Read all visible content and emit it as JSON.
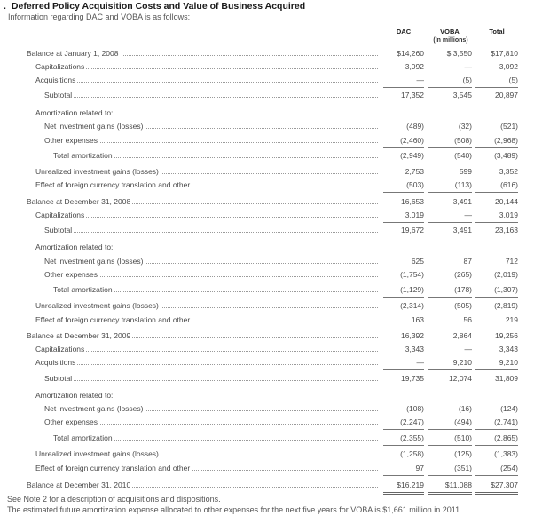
{
  "title": "Deferred Policy Acquisition Costs and Value of Business Acquired",
  "title_bullet": ".",
  "intro": "Information regarding DAC and VOBA is as follows:",
  "columns": {
    "dac": "DAC",
    "voba": "VOBA",
    "total": "Total",
    "units": "(In millions)"
  },
  "rows": [
    {
      "label": "Balance at January 1, 2008",
      "dac": "$14,260",
      "voba": "$ 3,550",
      "total": "$17,810"
    },
    {
      "label": "Capitalizations",
      "dac": "3,092",
      "voba": "—",
      "total": "3,092"
    },
    {
      "label": "Acquisitions",
      "dac": "—",
      "voba": "(5)",
      "total": "(5)"
    },
    {
      "label": "Subtotal",
      "dac": "17,352",
      "voba": "3,545",
      "total": "20,897"
    },
    {
      "label": "Amortization related to:",
      "dac": "",
      "voba": "",
      "total": ""
    },
    {
      "label": "Net investment gains (losses)",
      "dac": "(489)",
      "voba": "(32)",
      "total": "(521)"
    },
    {
      "label": "Other expenses",
      "dac": "(2,460)",
      "voba": "(508)",
      "total": "(2,968)"
    },
    {
      "label": "Total amortization",
      "dac": "(2,949)",
      "voba": "(540)",
      "total": "(3,489)"
    },
    {
      "label": "Unrealized investment gains (losses)",
      "dac": "2,753",
      "voba": "599",
      "total": "3,352"
    },
    {
      "label": "Effect of foreign currency translation and other",
      "dac": "(503)",
      "voba": "(113)",
      "total": "(616)"
    },
    {
      "label": "Balance at December 31, 2008",
      "dac": "16,653",
      "voba": "3,491",
      "total": "20,144"
    },
    {
      "label": "Capitalizations",
      "dac": "3,019",
      "voba": "—",
      "total": "3,019"
    },
    {
      "label": "Subtotal",
      "dac": "19,672",
      "voba": "3,491",
      "total": "23,163"
    },
    {
      "label": "Amortization related to:",
      "dac": "",
      "voba": "",
      "total": ""
    },
    {
      "label": "Net investment gains (losses)",
      "dac": "625",
      "voba": "87",
      "total": "712"
    },
    {
      "label": "Other expenses",
      "dac": "(1,754)",
      "voba": "(265)",
      "total": "(2,019)"
    },
    {
      "label": "Total amortization",
      "dac": "(1,129)",
      "voba": "(178)",
      "total": "(1,307)"
    },
    {
      "label": "Unrealized investment gains (losses)",
      "dac": "(2,314)",
      "voba": "(505)",
      "total": "(2,819)"
    },
    {
      "label": "Effect of foreign currency translation and other",
      "dac": "163",
      "voba": "56",
      "total": "219"
    },
    {
      "label": "Balance at December 31, 2009",
      "dac": "16,392",
      "voba": "2,864",
      "total": "19,256"
    },
    {
      "label": "Capitalizations",
      "dac": "3,343",
      "voba": "—",
      "total": "3,343"
    },
    {
      "label": "Acquisitions",
      "dac": "—",
      "voba": "9,210",
      "total": "9,210"
    },
    {
      "label": "Subtotal",
      "dac": "19,735",
      "voba": "12,074",
      "total": "31,809"
    },
    {
      "label": "Amortization related to:",
      "dac": "",
      "voba": "",
      "total": ""
    },
    {
      "label": "Net investment gains (losses)",
      "dac": "(108)",
      "voba": "(16)",
      "total": "(124)"
    },
    {
      "label": "Other expenses",
      "dac": "(2,247)",
      "voba": "(494)",
      "total": "(2,741)"
    },
    {
      "label": "Total amortization",
      "dac": "(2,355)",
      "voba": "(510)",
      "total": "(2,865)"
    },
    {
      "label": "Unrealized investment gains (losses)",
      "dac": "(1,258)",
      "voba": "(125)",
      "total": "(1,383)"
    },
    {
      "label": "Effect of foreign currency translation and other",
      "dac": "97",
      "voba": "(351)",
      "total": "(254)"
    },
    {
      "label": "Balance at December 31, 2010",
      "dac": "$16,219",
      "voba": "$11,088",
      "total": "$27,307"
    }
  ],
  "notes": [
    "See Note 2 for a description of acquisitions and dispositions.",
    "The estimated future amortization expense allocated to other expenses for the next five years for VOBA is $1,661 million in 2011"
  ]
}
